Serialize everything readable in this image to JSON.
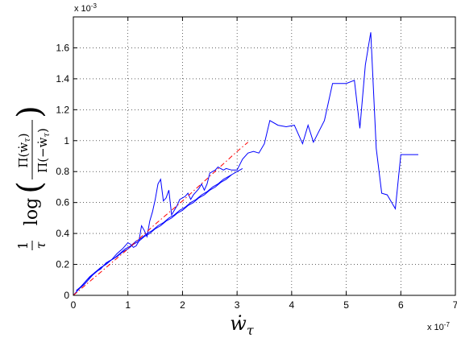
{
  "chart_data": {
    "type": "line",
    "title": "",
    "xlabel_main": "ẇ",
    "xlabel_sub": "τ",
    "ylabel_lead": "1",
    "ylabel_lead_den": "τ",
    "ylabel_log": "log",
    "ylabel_num": "Π(ẇ",
    "ylabel_den": "Π(−ẇ",
    "ylabel_sub": "τ",
    "x_multiplier": "x 10",
    "x_multiplier_exp": "-7",
    "y_multiplier": "x 10",
    "y_multiplier_exp": "-3",
    "xlim": [
      0,
      7
    ],
    "ylim": [
      0,
      0.0018
    ],
    "grid": true,
    "x_ticks": [
      0,
      1,
      2,
      3,
      4,
      5,
      6,
      7
    ],
    "x_tick_labels": [
      "0",
      "1",
      "2",
      "3",
      "4",
      "5",
      "6",
      "7"
    ],
    "y_ticks": [
      0,
      0.0002,
      0.0004,
      0.0006,
      0.0008,
      0.001,
      0.0012,
      0.0014,
      0.0016
    ],
    "y_tick_labels": [
      "0",
      "0.2",
      "0.4",
      "0.6",
      "0.8",
      "1",
      "1.2",
      "1.4",
      "1.6"
    ],
    "series": [
      {
        "color": "#0000ff",
        "style": "solid",
        "x": [
          0.05,
          0.12,
          0.2,
          0.3,
          0.4,
          0.5,
          0.6,
          0.7,
          0.8,
          0.9,
          1.0,
          1.1,
          1.2,
          1.3,
          1.4,
          1.5,
          1.6,
          1.7,
          1.8,
          1.9,
          2.0,
          2.1,
          2.2,
          2.3,
          2.4,
          2.5,
          2.6,
          2.7,
          2.8,
          2.9
        ],
        "y": [
          2e-05,
          5e-05,
          8e-05,
          0.00012,
          0.00015,
          0.00018,
          0.0002,
          0.00023,
          0.00025,
          0.00028,
          0.0003,
          0.00033,
          0.00035,
          0.00038,
          0.0004,
          0.00043,
          0.00045,
          0.00048,
          0.0005,
          0.00053,
          0.00055,
          0.00058,
          0.0006,
          0.00063,
          0.00065,
          0.00068,
          0.0007,
          0.00073,
          0.00075,
          0.00078
        ]
      },
      {
        "color": "#0000ff",
        "style": "solid",
        "x": [
          0.05,
          0.15,
          0.25,
          0.35,
          0.45,
          0.55,
          0.65,
          0.75,
          0.85,
          0.95,
          1.05,
          1.15,
          1.25,
          1.35,
          1.45,
          1.55,
          1.65,
          1.75,
          1.85,
          1.95,
          2.05,
          2.15,
          2.25,
          2.35,
          2.45,
          2.55,
          2.65,
          2.75,
          2.85,
          3.0,
          3.1
        ],
        "y": [
          3e-05,
          6e-05,
          0.0001,
          0.00013,
          0.00016,
          0.00019,
          0.00022,
          0.00024,
          0.00027,
          0.0003,
          0.00032,
          0.00035,
          0.00037,
          0.0004,
          0.00042,
          0.00045,
          0.00047,
          0.0005,
          0.00052,
          0.00055,
          0.00057,
          0.0006,
          0.00062,
          0.00065,
          0.00067,
          0.0007,
          0.00072,
          0.00075,
          0.00077,
          0.0008,
          0.00082
        ]
      },
      {
        "color": "#0000ff",
        "style": "solid",
        "x": [
          0.0,
          0.1,
          0.2,
          0.3,
          0.4,
          0.5,
          0.6,
          0.7,
          0.8,
          0.9,
          1.0,
          1.05,
          1.1,
          1.15,
          1.2,
          1.25,
          1.3,
          1.35,
          1.4,
          1.45,
          1.5,
          1.55,
          1.6,
          1.65,
          1.7,
          1.75,
          1.8,
          1.85,
          1.9,
          1.95,
          2.0,
          2.05,
          2.1,
          2.15,
          2.2,
          2.25,
          2.3,
          2.35,
          2.4,
          2.45,
          2.5,
          2.55,
          2.6,
          2.65,
          2.7,
          2.75,
          2.8,
          2.9,
          3.0,
          3.1,
          3.2,
          3.3,
          3.4,
          3.5,
          3.6,
          3.75,
          3.9,
          4.05,
          4.2,
          4.3,
          4.4,
          4.5,
          4.6,
          4.75,
          5.0,
          5.15,
          5.25,
          5.35,
          5.45,
          5.55,
          5.65,
          5.75,
          5.9,
          6.0,
          6.15,
          6.32
        ],
        "y": [
          0.0,
          4e-05,
          7e-05,
          0.00011,
          0.00015,
          0.00017,
          0.00021,
          0.00023,
          0.00027,
          0.0003,
          0.00034,
          0.00033,
          0.00031,
          0.00032,
          0.00035,
          0.00045,
          0.00042,
          0.00038,
          0.00048,
          0.00054,
          0.00062,
          0.00072,
          0.00075,
          0.00061,
          0.00063,
          0.00068,
          0.00052,
          0.00055,
          0.00058,
          0.00062,
          0.00063,
          0.00064,
          0.00066,
          0.00062,
          0.00065,
          0.00067,
          0.00069,
          0.00072,
          0.00068,
          0.00072,
          0.00079,
          0.0008,
          0.00081,
          0.00083,
          0.00082,
          0.00081,
          0.00082,
          0.00081,
          0.00081,
          0.00088,
          0.00092,
          0.00093,
          0.00092,
          0.00098,
          0.00113,
          0.0011,
          0.00109,
          0.0011,
          0.00098,
          0.0011,
          0.00099,
          0.00106,
          0.00113,
          0.00137,
          0.00137,
          0.00139,
          0.00108,
          0.00149,
          0.0017,
          0.00095,
          0.00066,
          0.00065,
          0.00056,
          0.00091,
          0.00091,
          0.00091
        ]
      },
      {
        "color": "#ff0000",
        "style": "dashdot",
        "x": [
          0.0,
          0.5,
          1.0,
          1.5,
          2.0,
          2.5,
          3.0,
          3.2
        ],
        "y": [
          0.0,
          0.00015,
          0.0003,
          0.00046,
          0.00061,
          0.00077,
          0.00093,
          0.00099
        ]
      }
    ]
  }
}
